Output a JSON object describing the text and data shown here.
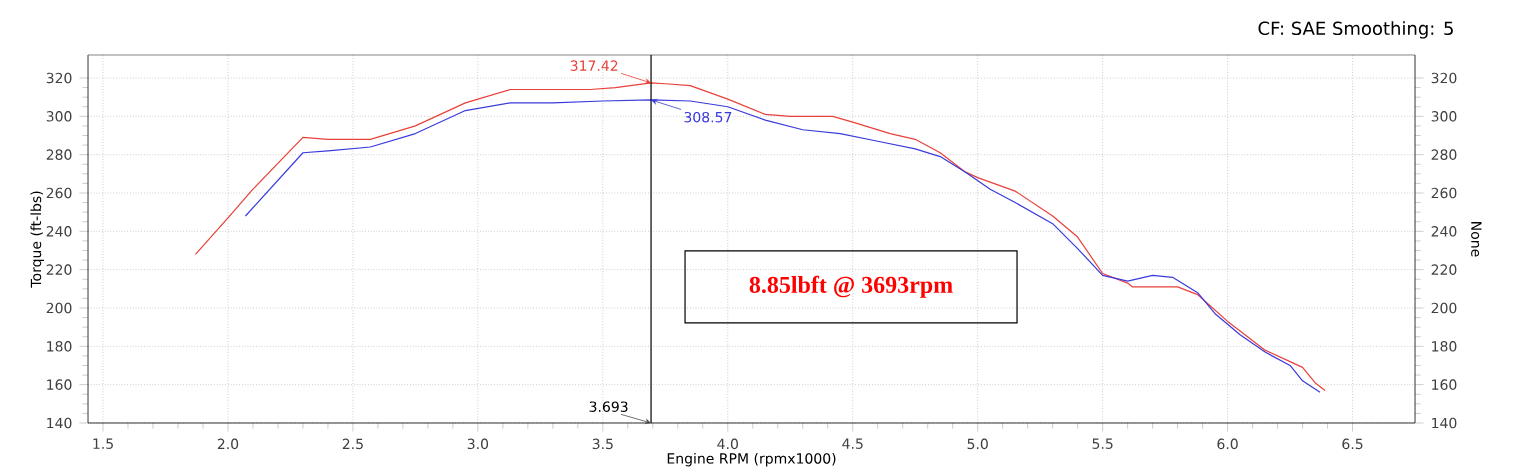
{
  "chart_data": {
    "type": "line",
    "xlabel": "Engine RPM (rpmx1000)",
    "ylabel": "Torque (ft-lbs)",
    "y2label": "None",
    "xlim": [
      1.44,
      6.75
    ],
    "xticks": [
      {
        "value": 1.5,
        "label": "1.5"
      },
      {
        "value": 2,
        "label": "2.0"
      },
      {
        "value": 2.5,
        "label": "2.5"
      },
      {
        "value": 3,
        "label": "3.0"
      },
      {
        "value": 3.5,
        "label": "3.5"
      },
      {
        "value": 4,
        "label": "4.0"
      },
      {
        "value": 4.5,
        "label": "4.5"
      },
      {
        "value": 5,
        "label": "5.0"
      },
      {
        "value": 5.5,
        "label": "5.5"
      },
      {
        "value": 6,
        "label": "6.0"
      },
      {
        "value": 6.5,
        "label": "6.5"
      }
    ],
    "ylim": [
      140,
      332
    ],
    "yticks": [
      140,
      160,
      180,
      200,
      220,
      240,
      260,
      280,
      300,
      320
    ],
    "y2lim": [
      140,
      332
    ],
    "y2ticks": [
      140,
      160,
      180,
      200,
      220,
      240,
      260,
      280,
      300,
      320
    ],
    "grid": true,
    "marker": "none",
    "line_style": "solid",
    "series": [
      {
        "color": "#e8403a",
        "x": [
          1.87,
          2.0,
          2.1,
          2.3,
          2.4,
          2.57,
          2.75,
          2.95,
          3.13,
          3.45,
          3.55,
          3.693,
          3.75,
          3.85,
          4.0,
          4.15,
          4.25,
          4.42,
          4.5,
          4.65,
          4.75,
          4.85,
          4.95,
          5.0,
          5.15,
          5.3,
          5.4,
          5.5,
          5.6,
          5.62,
          5.8,
          5.88,
          6.0,
          6.05,
          6.15,
          6.25,
          6.3,
          6.35,
          6.39
        ],
        "values": [
          228,
          247,
          262,
          289,
          288,
          288,
          295,
          307,
          314,
          314,
          315,
          317.42,
          317,
          316,
          309,
          301,
          300,
          300,
          297,
          291,
          288,
          281,
          271,
          268,
          261,
          248,
          237,
          218,
          213,
          211,
          211,
          207,
          193,
          188,
          178,
          172,
          169,
          161,
          157
        ]
      },
      {
        "color": "#3a3adc",
        "x": [
          2.07,
          2.3,
          2.4,
          2.57,
          2.75,
          2.95,
          3.13,
          3.3,
          3.5,
          3.693,
          3.85,
          4.0,
          4.15,
          4.3,
          4.45,
          4.6,
          4.75,
          4.85,
          4.95,
          5.05,
          5.15,
          5.3,
          5.4,
          5.5,
          5.6,
          5.7,
          5.78,
          5.88,
          5.95,
          6.05,
          6.15,
          6.25,
          6.3,
          6.37
        ],
        "values": [
          248,
          281,
          282,
          284,
          291,
          303,
          307,
          307,
          308,
          308.57,
          308,
          305,
          298,
          293,
          291,
          287,
          283,
          279,
          271,
          262,
          255,
          244,
          231,
          217,
          214,
          217,
          216,
          208,
          197,
          186,
          177,
          170,
          162,
          156
        ]
      }
    ],
    "ref_lines": [
      {
        "axis": "x",
        "value": 3.693,
        "label": "3.693",
        "color": "#000000"
      }
    ],
    "annotations": [
      "CF: SAE Smoothing: 5",
      "8.85lbft @ 3693rpm",
      {
        "text": "317.42",
        "x": 3.693,
        "y": 317.42
      },
      {
        "text": "308.57",
        "x": 3.693,
        "y": 308.57
      }
    ]
  }
}
